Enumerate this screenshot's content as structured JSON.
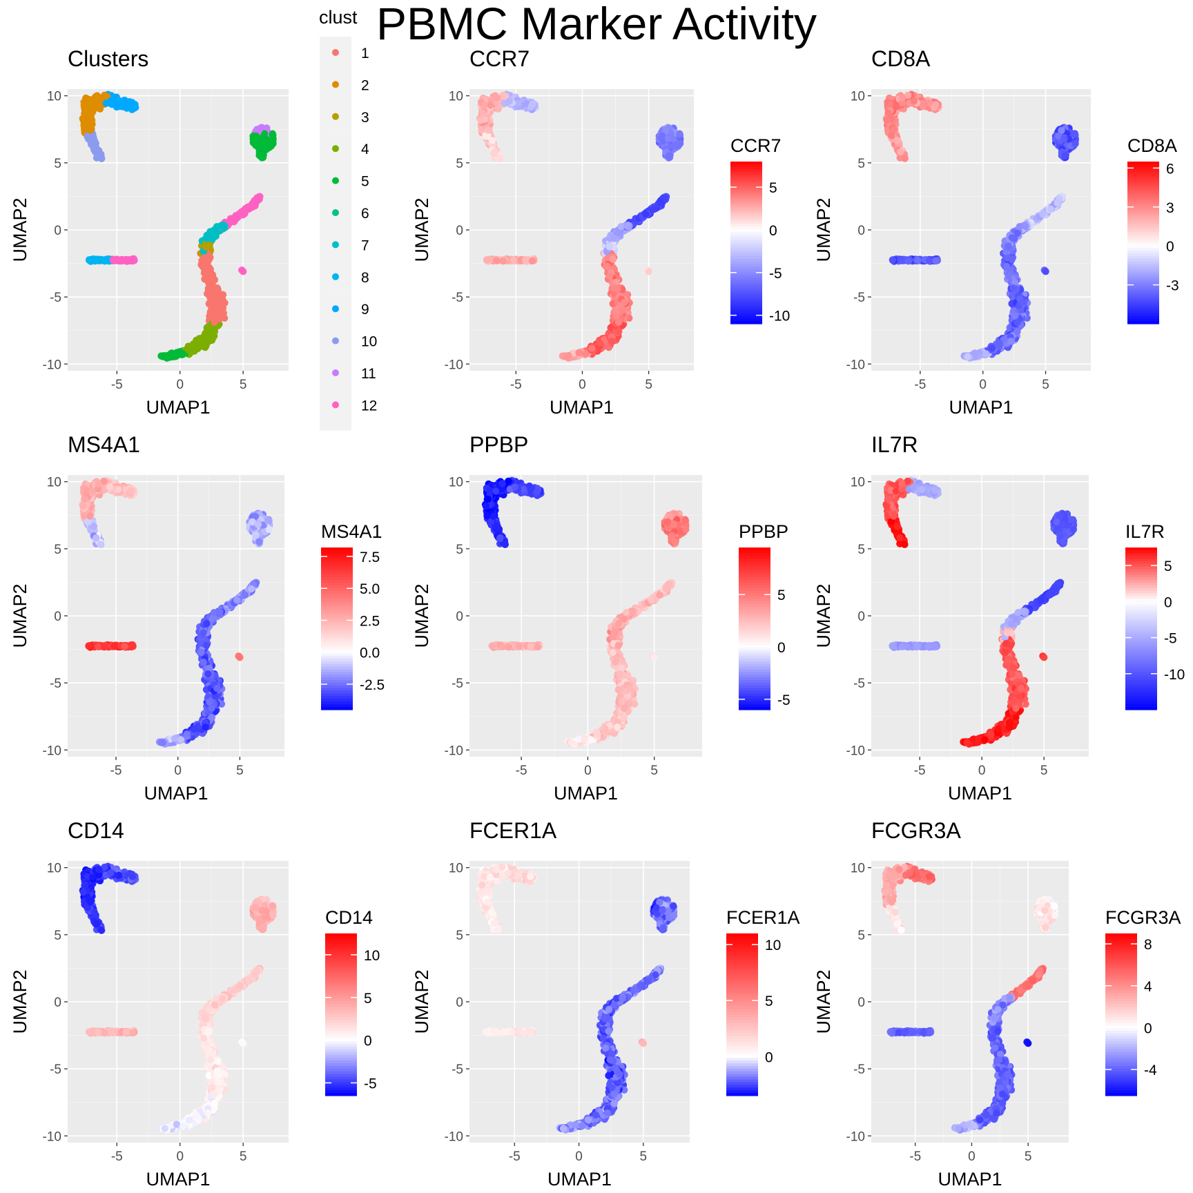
{
  "page_title": "PBMC Marker Activity",
  "cluster_legend": {
    "title": "clust",
    "items": [
      {
        "label": "1",
        "color": "#F8766D"
      },
      {
        "label": "2",
        "color": "#DE8C00"
      },
      {
        "label": "3",
        "color": "#B79F00"
      },
      {
        "label": "4",
        "color": "#7CAE00"
      },
      {
        "label": "5",
        "color": "#00BA38"
      },
      {
        "label": "6",
        "color": "#00C08B"
      },
      {
        "label": "7",
        "color": "#00BFC4"
      },
      {
        "label": "8",
        "color": "#00B4F0"
      },
      {
        "label": "9",
        "color": "#00A9FF"
      },
      {
        "label": "10",
        "color": "#8A9BF0"
      },
      {
        "label": "11",
        "color": "#C77CFF"
      },
      {
        "label": "12",
        "color": "#FF61C3"
      }
    ]
  },
  "colors": {
    "low": "#0000FF",
    "mid": "#FFFFFF",
    "high": "#FF0000",
    "panel_bg": "#EBEBEB"
  },
  "chart_data": [
    {
      "type": "scatter",
      "title": "Clusters",
      "xlabel": "UMAP1",
      "ylabel": "UMAP2",
      "xlim": [
        -8.9,
        8.6
      ],
      "ylim": [
        -10.5,
        10.5
      ],
      "xticks": [
        -5,
        0,
        5
      ],
      "yticks": [
        -10,
        -5,
        0,
        5,
        10
      ],
      "grid": true,
      "color_by": "cluster",
      "regions": {
        "tcurve": "2",
        "tcurve_tail": "10",
        "tcurve_tip": "9",
        "island": "5",
        "island_top": "11",
        "bline_left": "8",
        "bline_right": "12",
        "smear_upper": "7",
        "smear_upper_left": "3",
        "smear_tail": "12",
        "smear_mid": "1",
        "smear_bottom": "4",
        "smear_base": "5",
        "singleton": "12"
      }
    },
    {
      "type": "scatter",
      "title": "CCR7",
      "xlabel": "UMAP1",
      "ylabel": "UMAP2",
      "xlim": [
        -8.5,
        8.4
      ],
      "ylim": [
        -10.5,
        10.5
      ],
      "xticks": [
        -5,
        0,
        5
      ],
      "yticks": [
        -10,
        -5,
        0,
        5,
        10
      ],
      "grid": true,
      "color_by": "expression",
      "colorbar": {
        "title": "CCR7",
        "min": -11,
        "max": 8,
        "ticks": [
          5,
          0,
          -5,
          -10
        ]
      },
      "regions": {
        "tcurve": 2.5,
        "tcurve_tail": 1.5,
        "tcurve_tip": -3,
        "island": -6,
        "island_top": -5,
        "bline_left": 2.5,
        "bline_right": 2.5,
        "smear_upper": -4,
        "smear_upper_left": -2,
        "smear_tail": -8,
        "smear_mid": 4,
        "smear_bottom": 5,
        "smear_base": 3,
        "singleton": 1
      }
    },
    {
      "type": "scatter",
      "title": "CD8A",
      "xlabel": "UMAP1",
      "ylabel": "UMAP2",
      "xlim": [
        -8.9,
        8.6
      ],
      "ylim": [
        -10.5,
        10.5
      ],
      "xticks": [
        -5,
        0,
        5
      ],
      "yticks": [
        -10,
        -5,
        0,
        5,
        10
      ],
      "grid": true,
      "color_by": "expression",
      "colorbar": {
        "title": "CD8A",
        "min": -6,
        "max": 6.5,
        "ticks": [
          6,
          3,
          0,
          -3
        ]
      },
      "regions": {
        "tcurve": 3,
        "tcurve_tail": 2.5,
        "tcurve_tip": 3,
        "island": -4,
        "island_top": -4,
        "bline_left": -4,
        "bline_right": -4,
        "smear_upper": -2.5,
        "smear_upper_left": -3,
        "smear_tail": -1.5,
        "smear_mid": -3.5,
        "smear_bottom": -3.5,
        "smear_base": -2,
        "singleton": -4
      }
    },
    {
      "type": "scatter",
      "title": "MS4A1",
      "xlabel": "UMAP1",
      "ylabel": "UMAP2",
      "xlim": [
        -8.9,
        8.6
      ],
      "ylim": [
        -10.5,
        10.5
      ],
      "xticks": [
        -5,
        0,
        5
      ],
      "yticks": [
        -10,
        -5,
        0,
        5,
        10
      ],
      "grid": true,
      "color_by": "expression",
      "colorbar": {
        "title": "MS4A1",
        "min": -4.5,
        "max": 8.2,
        "ticks": [
          7.5,
          5.0,
          2.5,
          0.0,
          -2.5
        ]
      },
      "regions": {
        "tcurve": 2.5,
        "tcurve_tail": -1,
        "tcurve_tip": 2,
        "island": -1.5,
        "island_top": -1.5,
        "bline_left": 6.5,
        "bline_right": 6.5,
        "smear_upper": -2.5,
        "smear_upper_left": -2.5,
        "smear_tail": -2,
        "smear_mid": -3,
        "smear_bottom": -3,
        "smear_base": -1.5,
        "singleton": 4.5
      }
    },
    {
      "type": "scatter",
      "title": "PPBP",
      "xlabel": "UMAP1",
      "ylabel": "UMAP2",
      "xlim": [
        -8.9,
        8.6
      ],
      "ylim": [
        -10.5,
        10.5
      ],
      "xticks": [
        -5,
        0,
        5
      ],
      "yticks": [
        -10,
        -5,
        0,
        5,
        10
      ],
      "grid": true,
      "color_by": "expression",
      "colorbar": {
        "title": "PPBP",
        "min": -6,
        "max": 9.5,
        "ticks": [
          5,
          0,
          -5
        ]
      },
      "regions": {
        "tcurve": -5.5,
        "tcurve_tail": -5,
        "tcurve_tip": -4.5,
        "island": 5,
        "island_top": 4,
        "bline_left": 3,
        "bline_right": 3,
        "smear_upper": 3,
        "smear_upper_left": 3.5,
        "smear_tail": 2.5,
        "smear_mid": 2.5,
        "smear_bottom": 2,
        "smear_base": 0.5,
        "singleton": 1
      }
    },
    {
      "type": "scatter",
      "title": "IL7R",
      "xlabel": "UMAP1",
      "ylabel": "UMAP2",
      "xlim": [
        -8.9,
        8.6
      ],
      "ylim": [
        -10.5,
        10.5
      ],
      "xticks": [
        -5,
        0,
        5
      ],
      "yticks": [
        -10,
        -5,
        0,
        5,
        10
      ],
      "grid": true,
      "color_by": "expression",
      "colorbar": {
        "title": "IL7R",
        "min": -15,
        "max": 7.5,
        "ticks": [
          5,
          0,
          -5,
          -10
        ]
      },
      "regions": {
        "tcurve": 5,
        "tcurve_tail": 7,
        "tcurve_tip": -5,
        "island": -10,
        "island_top": -10,
        "bline_left": -6,
        "bline_right": -6,
        "smear_upper": -5,
        "smear_upper_left": 2,
        "smear_tail": -11,
        "smear_mid": 5,
        "smear_bottom": 6.5,
        "smear_base": 7,
        "singleton": 5
      }
    },
    {
      "type": "scatter",
      "title": "CD14",
      "xlabel": "UMAP1",
      "ylabel": "UMAP2",
      "xlim": [
        -8.9,
        8.6
      ],
      "ylim": [
        -10.5,
        10.5
      ],
      "xticks": [
        -5,
        0,
        5
      ],
      "yticks": [
        -10,
        -5,
        0,
        5,
        10
      ],
      "grid": true,
      "color_by": "expression",
      "colorbar": {
        "title": "CD14",
        "min": -6.5,
        "max": 12.5,
        "ticks": [
          10,
          5,
          0,
          -5
        ]
      },
      "regions": {
        "tcurve": -5.5,
        "tcurve_tail": -5,
        "tcurve_tip": -4.5,
        "island": 4,
        "island_top": 3,
        "bline_left": 3.5,
        "bline_right": 3.5,
        "smear_upper": 2,
        "smear_upper_left": 2.5,
        "smear_tail": 2.5,
        "smear_mid": 1,
        "smear_bottom": 0,
        "smear_base": -0.5,
        "singleton": 0
      }
    },
    {
      "type": "scatter",
      "title": "FCER1A",
      "xlabel": "UMAP1",
      "ylabel": "UMAP2",
      "xlim": [
        -8.5,
        8.6
      ],
      "ylim": [
        -10.5,
        10.5
      ],
      "xticks": [
        -5,
        0,
        5
      ],
      "yticks": [
        -10,
        -5,
        0,
        5,
        10
      ],
      "grid": true,
      "color_by": "expression",
      "colorbar": {
        "title": "FCER1A",
        "min": -3.5,
        "max": 11,
        "ticks": [
          10,
          5,
          0
        ]
      },
      "regions": {
        "tcurve": 1,
        "tcurve_tail": 1,
        "tcurve_tip": 1.5,
        "island": -2,
        "island_top": -2,
        "bline_left": 1,
        "bline_right": 1,
        "smear_upper": -2.2,
        "smear_upper_left": -2.2,
        "smear_tail": -2,
        "smear_mid": -2.2,
        "smear_bottom": -2,
        "smear_base": -1.5,
        "singleton": 3
      }
    },
    {
      "type": "scatter",
      "title": "FCGR3A",
      "xlabel": "UMAP1",
      "ylabel": "UMAP2",
      "xlim": [
        -8.9,
        8.6
      ],
      "ylim": [
        -10.5,
        10.5
      ],
      "xticks": [
        -5,
        0,
        5
      ],
      "yticks": [
        -10,
        -5,
        0,
        5,
        10
      ],
      "grid": true,
      "color_by": "expression",
      "colorbar": {
        "title": "FCGR3A",
        "min": -6.5,
        "max": 9,
        "ticks": [
          8,
          4,
          0,
          -4
        ]
      },
      "regions": {
        "tcurve": 3,
        "tcurve_tail": 1,
        "tcurve_tip": 5,
        "island": 1,
        "island_top": 0.5,
        "bline_left": -4,
        "bline_right": -4,
        "smear_upper": -3,
        "smear_upper_left": -3,
        "smear_tail": 5,
        "smear_mid": -4,
        "smear_bottom": -4,
        "smear_base": -2,
        "singleton": -5.5
      }
    }
  ]
}
